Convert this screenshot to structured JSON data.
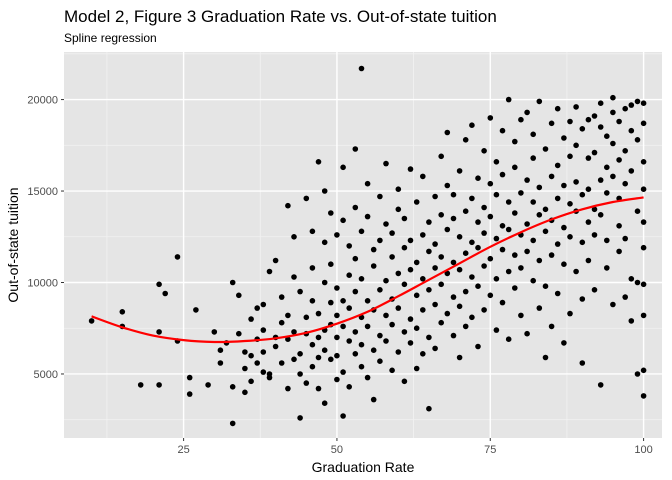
{
  "chart_data": {
    "type": "scatter",
    "title": "Model 2, Figure 3 Graduation Rate vs. Out-of-state tuition",
    "subtitle": "Spline regression",
    "xlabel": "Graduation Rate",
    "ylabel": "Out-of-state tuition",
    "xlim": [
      5.5,
      103
    ],
    "ylim": [
      1500,
      22600
    ],
    "x_ticks": [
      25,
      50,
      75,
      100
    ],
    "y_ticks": [
      5000,
      10000,
      15000,
      20000
    ],
    "x_tick_labels": [
      "25",
      "50",
      "75",
      "100"
    ],
    "y_tick_labels": [
      "5000",
      "10000",
      "15000",
      "20000"
    ],
    "grid": true,
    "background": "#e5e5e5",
    "point_color": "#000000",
    "fit_color": "#ff0000",
    "points": [
      [
        10,
        7900
      ],
      [
        15,
        8400
      ],
      [
        15,
        7600
      ],
      [
        18,
        4400
      ],
      [
        21,
        4400
      ],
      [
        21,
        9900
      ],
      [
        21,
        7300
      ],
      [
        22,
        9400
      ],
      [
        24,
        11400
      ],
      [
        24,
        6800
      ],
      [
        26,
        4800
      ],
      [
        26,
        3900
      ],
      [
        27,
        8500
      ],
      [
        29,
        4400
      ],
      [
        30,
        7300
      ],
      [
        31,
        6300
      ],
      [
        31,
        5600
      ],
      [
        32,
        6700
      ],
      [
        33,
        4300
      ],
      [
        33,
        10000
      ],
      [
        33,
        2300
      ],
      [
        34,
        7200
      ],
      [
        34,
        9300
      ],
      [
        35,
        4000
      ],
      [
        35,
        5300
      ],
      [
        35,
        6200
      ],
      [
        36,
        8000
      ],
      [
        36,
        4600
      ],
      [
        36,
        6000
      ],
      [
        37,
        6900
      ],
      [
        37,
        5600
      ],
      [
        37,
        8600
      ],
      [
        38,
        5100
      ],
      [
        38,
        7400
      ],
      [
        38,
        6200
      ],
      [
        38,
        8800
      ],
      [
        39,
        10600
      ],
      [
        39,
        4800
      ],
      [
        39,
        5000
      ],
      [
        40,
        7000
      ],
      [
        40,
        11200
      ],
      [
        40,
        6500
      ],
      [
        41,
        5600
      ],
      [
        41,
        7800
      ],
      [
        41,
        9200
      ],
      [
        42,
        14200
      ],
      [
        42,
        4200
      ],
      [
        42,
        6900
      ],
      [
        42,
        8200
      ],
      [
        43,
        5800
      ],
      [
        43,
        7300
      ],
      [
        43,
        10300
      ],
      [
        43,
        12500
      ],
      [
        44,
        2600
      ],
      [
        44,
        6100
      ],
      [
        44,
        9500
      ],
      [
        44,
        5000
      ],
      [
        45,
        14600
      ],
      [
        45,
        7200
      ],
      [
        45,
        8100
      ],
      [
        45,
        4500
      ],
      [
        46,
        6600
      ],
      [
        46,
        10800
      ],
      [
        46,
        12800
      ],
      [
        46,
        5400
      ],
      [
        46,
        9000
      ],
      [
        47,
        7000
      ],
      [
        47,
        16600
      ],
      [
        47,
        8300
      ],
      [
        47,
        5900
      ],
      [
        47,
        4200
      ],
      [
        48,
        10000
      ],
      [
        48,
        7400
      ],
      [
        48,
        12200
      ],
      [
        48,
        3400
      ],
      [
        48,
        6300
      ],
      [
        48,
        15000
      ],
      [
        49,
        8900
      ],
      [
        49,
        5800
      ],
      [
        49,
        7700
      ],
      [
        49,
        11000
      ],
      [
        49,
        13800
      ],
      [
        50,
        7000
      ],
      [
        50,
        9700
      ],
      [
        50,
        4700
      ],
      [
        50,
        12600
      ],
      [
        50,
        8200
      ],
      [
        50,
        6000
      ],
      [
        51,
        13400
      ],
      [
        51,
        16300
      ],
      [
        51,
        7600
      ],
      [
        51,
        9000
      ],
      [
        51,
        5100
      ],
      [
        51,
        2700
      ],
      [
        52,
        10400
      ],
      [
        52,
        6800
      ],
      [
        52,
        8600
      ],
      [
        52,
        12000
      ],
      [
        52,
        4300
      ],
      [
        53,
        7300
      ],
      [
        53,
        9500
      ],
      [
        53,
        14100
      ],
      [
        53,
        6100
      ],
      [
        53,
        11300
      ],
      [
        53,
        17300
      ],
      [
        54,
        21700
      ],
      [
        54,
        8100
      ],
      [
        54,
        10200
      ],
      [
        54,
        6600
      ],
      [
        54,
        5400
      ],
      [
        54,
        12800
      ],
      [
        55,
        7600
      ],
      [
        55,
        9000
      ],
      [
        55,
        13600
      ],
      [
        55,
        15400
      ],
      [
        55,
        4800
      ],
      [
        56,
        8500
      ],
      [
        56,
        10900
      ],
      [
        56,
        6300
      ],
      [
        56,
        11800
      ],
      [
        56,
        3600
      ],
      [
        57,
        7100
      ],
      [
        57,
        9600
      ],
      [
        57,
        12300
      ],
      [
        57,
        5700
      ],
      [
        57,
        14700
      ],
      [
        58,
        8200
      ],
      [
        58,
        10100
      ],
      [
        58,
        6800
      ],
      [
        58,
        16500
      ],
      [
        58,
        13200
      ],
      [
        59,
        7700
      ],
      [
        59,
        11400
      ],
      [
        59,
        9100
      ],
      [
        59,
        5200
      ],
      [
        59,
        12700
      ],
      [
        60,
        10500
      ],
      [
        60,
        8600
      ],
      [
        60,
        6200
      ],
      [
        60,
        14000
      ],
      [
        60,
        15100
      ],
      [
        61,
        7300
      ],
      [
        61,
        11900
      ],
      [
        61,
        9900
      ],
      [
        61,
        4600
      ],
      [
        61,
        13500
      ],
      [
        62,
        8000
      ],
      [
        62,
        10700
      ],
      [
        62,
        12300
      ],
      [
        62,
        6700
      ],
      [
        62,
        16200
      ],
      [
        63,
        9300
      ],
      [
        63,
        11100
      ],
      [
        63,
        7500
      ],
      [
        63,
        14400
      ],
      [
        63,
        5300
      ],
      [
        64,
        10200
      ],
      [
        64,
        12600
      ],
      [
        64,
        8500
      ],
      [
        64,
        6100
      ],
      [
        64,
        15800
      ],
      [
        65,
        9600
      ],
      [
        65,
        11700
      ],
      [
        65,
        13300
      ],
      [
        65,
        7000
      ],
      [
        65,
        3100
      ],
      [
        66,
        10800
      ],
      [
        66,
        12100
      ],
      [
        66,
        8800
      ],
      [
        66,
        14700
      ],
      [
        66,
        6400
      ],
      [
        67,
        9900
      ],
      [
        67,
        13700
      ],
      [
        67,
        11400
      ],
      [
        67,
        7800
      ],
      [
        67,
        16900
      ],
      [
        68,
        10500
      ],
      [
        68,
        12900
      ],
      [
        68,
        8300
      ],
      [
        68,
        15300
      ],
      [
        68,
        18200
      ],
      [
        69,
        11100
      ],
      [
        69,
        9200
      ],
      [
        69,
        13500
      ],
      [
        69,
        7100
      ],
      [
        69,
        14800
      ],
      [
        70,
        10700
      ],
      [
        70,
        12500
      ],
      [
        70,
        8700
      ],
      [
        70,
        16100
      ],
      [
        70,
        5900
      ],
      [
        71,
        11600
      ],
      [
        71,
        13900
      ],
      [
        71,
        9500
      ],
      [
        71,
        7600
      ],
      [
        71,
        17800
      ],
      [
        72,
        12200
      ],
      [
        72,
        10300
      ],
      [
        72,
        14600
      ],
      [
        72,
        8100
      ],
      [
        72,
        18600
      ],
      [
        73,
        11900
      ],
      [
        73,
        13300
      ],
      [
        73,
        9800
      ],
      [
        73,
        15700
      ],
      [
        73,
        6500
      ],
      [
        74,
        12700
      ],
      [
        74,
        10900
      ],
      [
        74,
        14100
      ],
      [
        74,
        8500
      ],
      [
        74,
        17200
      ],
      [
        75,
        11300
      ],
      [
        75,
        13600
      ],
      [
        75,
        15400
      ],
      [
        75,
        9300
      ],
      [
        75,
        19000
      ],
      [
        76,
        12400
      ],
      [
        76,
        10200
      ],
      [
        76,
        14800
      ],
      [
        76,
        7400
      ],
      [
        76,
        16600
      ],
      [
        77,
        11800
      ],
      [
        77,
        13100
      ],
      [
        77,
        15900
      ],
      [
        77,
        8900
      ],
      [
        77,
        18300
      ],
      [
        78,
        12900
      ],
      [
        78,
        10600
      ],
      [
        78,
        14400
      ],
      [
        78,
        20000
      ],
      [
        78,
        6900
      ],
      [
        79,
        11500
      ],
      [
        79,
        13800
      ],
      [
        79,
        16300
      ],
      [
        79,
        9700
      ],
      [
        79,
        17700
      ],
      [
        80,
        12600
      ],
      [
        80,
        14900
      ],
      [
        80,
        10800
      ],
      [
        80,
        18900
      ],
      [
        80,
        8200
      ],
      [
        81,
        13200
      ],
      [
        81,
        11700
      ],
      [
        81,
        15600
      ],
      [
        81,
        19300
      ],
      [
        81,
        7200
      ],
      [
        82,
        12300
      ],
      [
        82,
        14400
      ],
      [
        82,
        16800
      ],
      [
        82,
        10100
      ],
      [
        82,
        18100
      ],
      [
        83,
        13700
      ],
      [
        83,
        11200
      ],
      [
        83,
        15200
      ],
      [
        83,
        19900
      ],
      [
        83,
        8600
      ],
      [
        84,
        12800
      ],
      [
        84,
        14000
      ],
      [
        84,
        17300
      ],
      [
        84,
        9800
      ],
      [
        84,
        5900
      ],
      [
        85,
        13400
      ],
      [
        85,
        15800
      ],
      [
        85,
        11500
      ],
      [
        85,
        18700
      ],
      [
        85,
        7600
      ],
      [
        86,
        12100
      ],
      [
        86,
        14600
      ],
      [
        86,
        16400
      ],
      [
        86,
        19500
      ],
      [
        86,
        9400
      ],
      [
        87,
        13000
      ],
      [
        87,
        17900
      ],
      [
        87,
        11000
      ],
      [
        87,
        15300
      ],
      [
        87,
        6700
      ],
      [
        88,
        14300
      ],
      [
        88,
        16900
      ],
      [
        88,
        12500
      ],
      [
        88,
        18800
      ],
      [
        88,
        8300
      ],
      [
        89,
        13900
      ],
      [
        89,
        15500
      ],
      [
        89,
        17500
      ],
      [
        89,
        10600
      ],
      [
        89,
        19600
      ],
      [
        90,
        12200
      ],
      [
        90,
        14800
      ],
      [
        90,
        18400
      ],
      [
        90,
        9100
      ],
      [
        90,
        5600
      ],
      [
        91,
        15100
      ],
      [
        91,
        16800
      ],
      [
        91,
        13300
      ],
      [
        91,
        18900
      ],
      [
        91,
        11200
      ],
      [
        92,
        17100
      ],
      [
        92,
        14000
      ],
      [
        92,
        19100
      ],
      [
        92,
        12600
      ],
      [
        92,
        9600
      ],
      [
        93,
        18500
      ],
      [
        93,
        15600
      ],
      [
        93,
        13700
      ],
      [
        93,
        19800
      ],
      [
        93,
        4400
      ],
      [
        94,
        16300
      ],
      [
        94,
        12300
      ],
      [
        94,
        18000
      ],
      [
        94,
        10800
      ],
      [
        94,
        14900
      ],
      [
        95,
        17600
      ],
      [
        95,
        19300
      ],
      [
        95,
        20100
      ],
      [
        95,
        15800
      ],
      [
        95,
        8800
      ],
      [
        96,
        14600
      ],
      [
        96,
        18800
      ],
      [
        96,
        11700
      ],
      [
        96,
        16700
      ],
      [
        96,
        13100
      ],
      [
        97,
        19500
      ],
      [
        97,
        17200
      ],
      [
        97,
        9200
      ],
      [
        97,
        15400
      ],
      [
        97,
        12400
      ],
      [
        98,
        18300
      ],
      [
        98,
        19700
      ],
      [
        98,
        7900
      ],
      [
        98,
        10200
      ],
      [
        98,
        16100
      ],
      [
        99,
        19900
      ],
      [
        99,
        17800
      ],
      [
        99,
        13900
      ],
      [
        99,
        10000
      ],
      [
        99,
        5000
      ],
      [
        100,
        19800
      ],
      [
        100,
        18700
      ],
      [
        100,
        15100
      ],
      [
        100,
        11900
      ],
      [
        100,
        9900
      ],
      [
        100,
        8200
      ],
      [
        100,
        5200
      ],
      [
        100,
        3800
      ],
      [
        100,
        13300
      ],
      [
        100,
        16600
      ]
    ],
    "fit": {
      "name": "spline fit",
      "x": [
        10,
        15,
        20,
        25,
        30,
        35,
        40,
        45,
        50,
        55,
        60,
        65,
        70,
        75,
        80,
        85,
        90,
        95,
        100
      ],
      "y": [
        8150,
        7550,
        7100,
        6850,
        6750,
        6800,
        6950,
        7250,
        7750,
        8400,
        9250,
        10150,
        11050,
        11950,
        12750,
        13450,
        14000,
        14400,
        14650
      ]
    }
  }
}
